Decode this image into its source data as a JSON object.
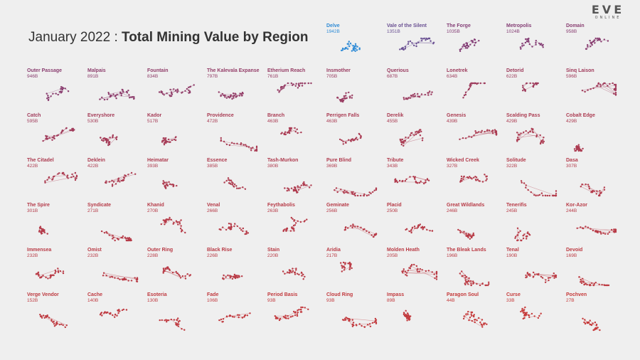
{
  "title": {
    "prefix": "January 2022",
    "separator": ":",
    "main": "Total Mining Value by Region"
  },
  "logo": {
    "text": "EVE",
    "subtext": "ONLINE"
  },
  "colors": {
    "high": "#2f8bd6",
    "mid": "#7b3f7e",
    "low": "#c63a3a",
    "background": "#efefef"
  },
  "chart_data": {
    "type": "small-multiples-map",
    "title": "January 2022 : Total Mining Value by Region",
    "unit": "B ISK",
    "regions": [
      {
        "name": "Delve",
        "value_label": "1942B",
        "value": 1942
      },
      {
        "name": "Vale of the Silent",
        "value_label": "1351B",
        "value": 1351
      },
      {
        "name": "The Forge",
        "value_label": "1035B",
        "value": 1035
      },
      {
        "name": "Metropolis",
        "value_label": "1024B",
        "value": 1024
      },
      {
        "name": "Domain",
        "value_label": "958B",
        "value": 958
      },
      {
        "name": "Outer Passage",
        "value_label": "946B",
        "value": 946
      },
      {
        "name": "Malpais",
        "value_label": "891B",
        "value": 891
      },
      {
        "name": "Fountain",
        "value_label": "834B",
        "value": 834
      },
      {
        "name": "The Kalevala Expanse",
        "value_label": "797B",
        "value": 797
      },
      {
        "name": "Etherium Reach",
        "value_label": "761B",
        "value": 761
      },
      {
        "name": "Insmother",
        "value_label": "705B",
        "value": 705
      },
      {
        "name": "Querious",
        "value_label": "687B",
        "value": 687
      },
      {
        "name": "Lonetrek",
        "value_label": "634B",
        "value": 634
      },
      {
        "name": "Detorid",
        "value_label": "622B",
        "value": 622
      },
      {
        "name": "Sinq Laison",
        "value_label": "596B",
        "value": 596
      },
      {
        "name": "Catch",
        "value_label": "595B",
        "value": 595
      },
      {
        "name": "Everyshore",
        "value_label": "530B",
        "value": 530
      },
      {
        "name": "Kador",
        "value_label": "517B",
        "value": 517
      },
      {
        "name": "Providence",
        "value_label": "472B",
        "value": 472
      },
      {
        "name": "Branch",
        "value_label": "463B",
        "value": 463
      },
      {
        "name": "Perrigen Falls",
        "value_label": "463B",
        "value": 463
      },
      {
        "name": "Derelik",
        "value_label": "455B",
        "value": 455
      },
      {
        "name": "Genesis",
        "value_label": "439B",
        "value": 439
      },
      {
        "name": "Scalding Pass",
        "value_label": "429B",
        "value": 429
      },
      {
        "name": "Cobalt Edge",
        "value_label": "429B",
        "value": 429
      },
      {
        "name": "The Citadel",
        "value_label": "422B",
        "value": 422
      },
      {
        "name": "Deklein",
        "value_label": "422B",
        "value": 422
      },
      {
        "name": "Heimatar",
        "value_label": "393B",
        "value": 393
      },
      {
        "name": "Essence",
        "value_label": "385B",
        "value": 385
      },
      {
        "name": "Tash-Murkon",
        "value_label": "380B",
        "value": 380
      },
      {
        "name": "Pure Blind",
        "value_label": "369B",
        "value": 369
      },
      {
        "name": "Tribute",
        "value_label": "343B",
        "value": 343
      },
      {
        "name": "Wicked Creek",
        "value_label": "327B",
        "value": 327
      },
      {
        "name": "Solitude",
        "value_label": "322B",
        "value": 322
      },
      {
        "name": "Dasa",
        "value_label": "307B",
        "value": 307
      },
      {
        "name": "The Spire",
        "value_label": "301B",
        "value": 301
      },
      {
        "name": "Syndicate",
        "value_label": "271B",
        "value": 271
      },
      {
        "name": "Khanid",
        "value_label": "270B",
        "value": 270
      },
      {
        "name": "Venal",
        "value_label": "266B",
        "value": 266
      },
      {
        "name": "Feythabolis",
        "value_label": "263B",
        "value": 263
      },
      {
        "name": "Geminate",
        "value_label": "256B",
        "value": 256
      },
      {
        "name": "Placid",
        "value_label": "250B",
        "value": 250
      },
      {
        "name": "Great Wildlands",
        "value_label": "246B",
        "value": 246
      },
      {
        "name": "Tenerifis",
        "value_label": "245B",
        "value": 245
      },
      {
        "name": "Kor-Azor",
        "value_label": "244B",
        "value": 244
      },
      {
        "name": "Immensea",
        "value_label": "232B",
        "value": 232
      },
      {
        "name": "Omist",
        "value_label": "232B",
        "value": 232
      },
      {
        "name": "Outer Ring",
        "value_label": "228B",
        "value": 228
      },
      {
        "name": "Black Rise",
        "value_label": "226B",
        "value": 226
      },
      {
        "name": "Stain",
        "value_label": "220B",
        "value": 220
      },
      {
        "name": "Aridia",
        "value_label": "217B",
        "value": 217
      },
      {
        "name": "Molden Heath",
        "value_label": "205B",
        "value": 205
      },
      {
        "name": "The Bleak Lands",
        "value_label": "196B",
        "value": 196
      },
      {
        "name": "Tenal",
        "value_label": "190B",
        "value": 190
      },
      {
        "name": "Devoid",
        "value_label": "169B",
        "value": 169
      },
      {
        "name": "Verge Vendor",
        "value_label": "152B",
        "value": 152
      },
      {
        "name": "Cache",
        "value_label": "140B",
        "value": 140
      },
      {
        "name": "Esoteria",
        "value_label": "130B",
        "value": 130
      },
      {
        "name": "Fade",
        "value_label": "106B",
        "value": 106
      },
      {
        "name": "Period Basis",
        "value_label": "93B",
        "value": 93
      },
      {
        "name": "Cloud Ring",
        "value_label": "93B",
        "value": 93
      },
      {
        "name": "Impass",
        "value_label": "89B",
        "value": 89
      },
      {
        "name": "Paragon Soul",
        "value_label": "44B",
        "value": 44
      },
      {
        "name": "Curse",
        "value_label": "33B",
        "value": 33
      },
      {
        "name": "Pochven",
        "value_label": "27B",
        "value": 27
      }
    ]
  }
}
